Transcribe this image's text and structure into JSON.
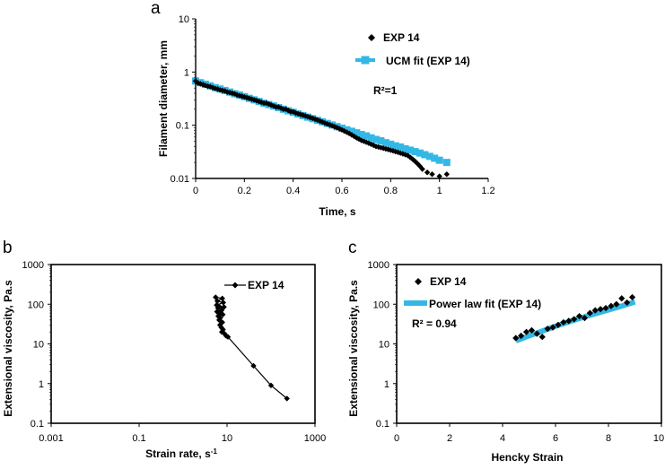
{
  "chart_data": [
    {
      "panel_label": "a",
      "type": "scatter",
      "xlabel": "Time, s",
      "ylabel": "Filament diameter, mm",
      "xlim": [
        0,
        1.2
      ],
      "ylim": [
        0.01,
        10
      ],
      "yscale": "log",
      "xticks": [
        "0",
        "0.2",
        "0.4",
        "0.6",
        "0.8",
        "1",
        "1.2"
      ],
      "yticks": [
        "0.01",
        "0.1",
        "1",
        "10"
      ],
      "legend_position": "top-right",
      "annotation": "R²=1",
      "series": [
        {
          "name": "EXP 14",
          "marker": "diamond",
          "color": "#000000",
          "x": [
            0.0,
            0.01,
            0.02,
            0.03,
            0.04,
            0.05,
            0.06,
            0.07,
            0.08,
            0.09,
            0.1,
            0.11,
            0.12,
            0.13,
            0.14,
            0.15,
            0.16,
            0.17,
            0.18,
            0.19,
            0.2,
            0.21,
            0.22,
            0.23,
            0.24,
            0.25,
            0.26,
            0.27,
            0.28,
            0.29,
            0.3,
            0.31,
            0.32,
            0.33,
            0.34,
            0.35,
            0.36,
            0.37,
            0.38,
            0.39,
            0.4,
            0.41,
            0.42,
            0.43,
            0.44,
            0.45,
            0.46,
            0.47,
            0.48,
            0.49,
            0.5,
            0.51,
            0.52,
            0.53,
            0.54,
            0.55,
            0.56,
            0.57,
            0.58,
            0.59,
            0.6,
            0.61,
            0.62,
            0.63,
            0.64,
            0.65,
            0.66,
            0.67,
            0.68,
            0.69,
            0.7,
            0.71,
            0.72,
            0.73,
            0.74,
            0.75,
            0.76,
            0.77,
            0.78,
            0.79,
            0.8,
            0.81,
            0.82,
            0.83,
            0.84,
            0.85,
            0.86,
            0.87,
            0.88,
            0.89,
            0.9,
            0.91,
            0.92,
            0.93,
            0.95,
            0.97,
            1.0,
            1.03
          ],
          "y": [
            0.68,
            0.62,
            0.6,
            0.58,
            0.56,
            0.54,
            0.53,
            0.51,
            0.49,
            0.48,
            0.46,
            0.45,
            0.44,
            0.42,
            0.41,
            0.4,
            0.39,
            0.37,
            0.36,
            0.35,
            0.34,
            0.33,
            0.32,
            0.31,
            0.3,
            0.29,
            0.28,
            0.27,
            0.26,
            0.26,
            0.25,
            0.24,
            0.23,
            0.22,
            0.22,
            0.21,
            0.2,
            0.2,
            0.19,
            0.18,
            0.18,
            0.17,
            0.165,
            0.16,
            0.155,
            0.15,
            0.145,
            0.14,
            0.135,
            0.13,
            0.125,
            0.12,
            0.115,
            0.11,
            0.106,
            0.102,
            0.098,
            0.094,
            0.09,
            0.086,
            0.082,
            0.078,
            0.074,
            0.07,
            0.066,
            0.062,
            0.058,
            0.055,
            0.052,
            0.05,
            0.048,
            0.046,
            0.044,
            0.042,
            0.04,
            0.039,
            0.038,
            0.037,
            0.036,
            0.035,
            0.034,
            0.033,
            0.032,
            0.031,
            0.03,
            0.029,
            0.028,
            0.027,
            0.025,
            0.023,
            0.021,
            0.019,
            0.017,
            0.015,
            0.013,
            0.012,
            0.011,
            0.012
          ]
        },
        {
          "name": "UCM fit (EXP 14)",
          "marker": "square",
          "color": "#33b8e6",
          "x": [
            0.0,
            0.02,
            0.04,
            0.06,
            0.08,
            0.1,
            0.12,
            0.14,
            0.16,
            0.18,
            0.2,
            0.22,
            0.24,
            0.26,
            0.28,
            0.3,
            0.32,
            0.34,
            0.36,
            0.38,
            0.4,
            0.42,
            0.44,
            0.46,
            0.48,
            0.5,
            0.52,
            0.54,
            0.56,
            0.58,
            0.6,
            0.62,
            0.64,
            0.66,
            0.68,
            0.7,
            0.72,
            0.74,
            0.76,
            0.78,
            0.8,
            0.82,
            0.84,
            0.86,
            0.88,
            0.9,
            0.92,
            0.94,
            0.96,
            0.98,
            1.0,
            1.03
          ],
          "y": [
            0.68,
            0.63,
            0.59,
            0.55,
            0.51,
            0.48,
            0.45,
            0.42,
            0.39,
            0.37,
            0.345,
            0.32,
            0.3,
            0.28,
            0.26,
            0.245,
            0.23,
            0.215,
            0.2,
            0.187,
            0.175,
            0.163,
            0.152,
            0.142,
            0.133,
            0.124,
            0.116,
            0.108,
            0.101,
            0.094,
            0.088,
            0.082,
            0.077,
            0.072,
            0.067,
            0.063,
            0.058,
            0.054,
            0.051,
            0.047,
            0.044,
            0.041,
            0.039,
            0.036,
            0.034,
            0.032,
            0.03,
            0.028,
            0.026,
            0.024,
            0.022,
            0.02
          ]
        }
      ]
    },
    {
      "panel_label": "b",
      "type": "line",
      "xlabel": "Strain rate, s",
      "xlabel_sup": "-1",
      "ylabel": "Extensional viscosity, Pa.s",
      "xscale": "log",
      "yscale": "log",
      "xlim": [
        0.001,
        1000
      ],
      "ylim": [
        0.1,
        1000
      ],
      "xticks": [
        "0.001",
        "0.1",
        "10",
        "1000"
      ],
      "yticks": [
        "0.1",
        "1",
        "10",
        "100",
        "1000"
      ],
      "legend_position": "top-right",
      "series": [
        {
          "name": "EXP 14",
          "marker": "diamond",
          "color": "#000000",
          "x": [
            5.5,
            7.8,
            6.0,
            8.2,
            5.8,
            6.5,
            8.5,
            6.2,
            7.5,
            5.9,
            6.8,
            8.0,
            6.3,
            7.0,
            6.6,
            7.8,
            6.9,
            7.4,
            8.1,
            7.6,
            8.8,
            9.5,
            10.5,
            40.0,
            100.0,
            230.0
          ],
          "y": [
            150.0,
            140.0,
            120.0,
            110.0,
            95.0,
            90.0,
            85.0,
            80.0,
            70.0,
            65.0,
            60.0,
            55.0,
            50.0,
            45.0,
            40.0,
            35.0,
            30.0,
            26.0,
            23.0,
            20.0,
            18.0,
            16.0,
            15.0,
            2.8,
            0.9,
            0.42
          ]
        }
      ]
    },
    {
      "panel_label": "c",
      "type": "scatter",
      "xlabel": "Hencky Strain",
      "ylabel": "Extensional viscosity, Pa.s",
      "yscale": "log",
      "xlim": [
        0,
        10
      ],
      "ylim": [
        0.1,
        1000
      ],
      "xticks": [
        "0",
        "2",
        "4",
        "6",
        "8",
        "10"
      ],
      "yticks": [
        "0.1",
        "1",
        "10",
        "100",
        "1000"
      ],
      "legend_position": "top-left",
      "annotation": "R² = 0.94",
      "series": [
        {
          "name": "EXP 14",
          "marker": "diamond",
          "color": "#000000",
          "x": [
            4.5,
            4.7,
            4.9,
            5.1,
            5.3,
            5.5,
            5.7,
            5.9,
            6.1,
            6.3,
            6.5,
            6.7,
            6.9,
            7.1,
            7.3,
            7.5,
            7.7,
            7.9,
            8.1,
            8.3,
            8.5,
            8.7,
            8.9
          ],
          "y": [
            14.0,
            16.0,
            20.0,
            22.0,
            18.0,
            15.0,
            24.0,
            26.0,
            30.0,
            35.0,
            38.0,
            42.0,
            50.0,
            45.0,
            60.0,
            70.0,
            75.0,
            80.0,
            90.0,
            100.0,
            140.0,
            110.0,
            150.0
          ]
        },
        {
          "name": "Power law fit (EXP 14)",
          "marker": "line",
          "color": "#33b8e6",
          "x": [
            4.5,
            5.0,
            5.5,
            6.0,
            6.5,
            7.0,
            7.5,
            8.0,
            8.5,
            9.0
          ],
          "y": [
            12.0,
            16.0,
            21.0,
            28.0,
            36.0,
            46.0,
            58.0,
            72.0,
            90.0,
            115.0
          ]
        }
      ]
    }
  ]
}
